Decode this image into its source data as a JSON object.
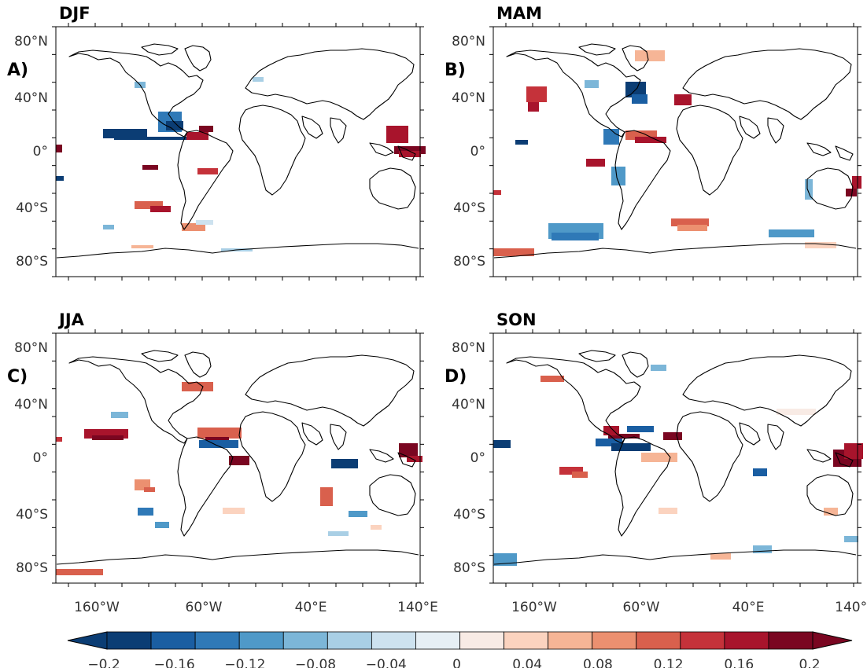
{
  "panels": [
    {
      "title": "DJF",
      "letter": "A)"
    },
    {
      "title": "MAM",
      "letter": "B)"
    },
    {
      "title": "JJA",
      "letter": "C)"
    },
    {
      "title": "SON",
      "letter": "D)"
    }
  ],
  "lat_ticks": [
    "80°N",
    "40°N",
    "0°",
    "40°S",
    "80°S"
  ],
  "lon_ticks": [
    "160°W",
    "60°W",
    "40°E",
    "140°E"
  ],
  "colorbar": {
    "labels": [
      "−0.2",
      "−0.16",
      "−0.12",
      "−0.08",
      "−0.04",
      "0",
      "0.04",
      "0.08",
      "0.12",
      "0.16",
      "0.2"
    ],
    "colors": [
      "#0b3d74",
      "#1a5ea2",
      "#2f79b7",
      "#4f99c8",
      "#7cb6d8",
      "#a9cfe5",
      "#cde2ef",
      "#e6eff5",
      "#f8ebe5",
      "#fbd3bf",
      "#f6b596",
      "#ec9070",
      "#d9604d",
      "#c5323a",
      "#a8142c",
      "#7a0621"
    ]
  },
  "chart_data": {
    "type": "heatmap",
    "variable_range": [
      -0.2,
      0.2
    ],
    "panels": [
      "DJF",
      "MAM",
      "JJA",
      "SON"
    ],
    "x_ticks": [
      "160°W",
      "60°W",
      "40°E",
      "140°E"
    ],
    "y_ticks": [
      "80°N",
      "40°N",
      "0°",
      "40°S",
      "80°S"
    ]
  }
}
